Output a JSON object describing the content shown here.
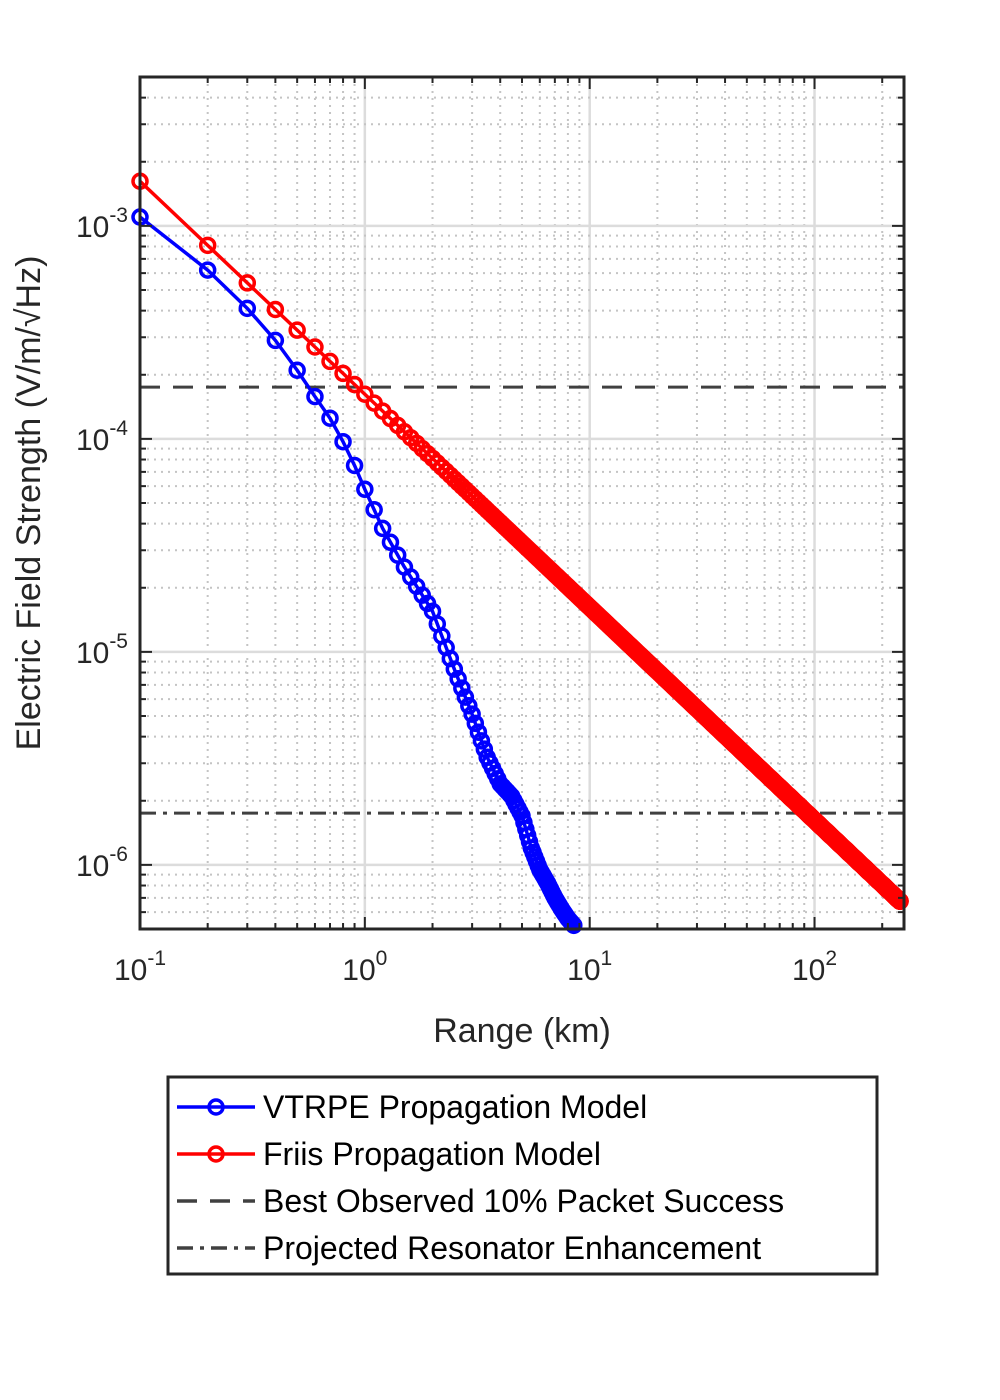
{
  "chart_data": {
    "type": "line",
    "xscale": "log",
    "yscale": "log",
    "xlim": [
      0.1,
      250
    ],
    "ylim": [
      5e-07,
      0.005
    ],
    "xlabel": "Range (km)",
    "ylabel": "Electric Field Strength (V/m/√Hz)",
    "x_ticks": [
      {
        "base": "10",
        "exp": "-1"
      },
      {
        "base": "10",
        "exp": "0"
      },
      {
        "base": "10",
        "exp": "1"
      },
      {
        "base": "10",
        "exp": "2"
      }
    ],
    "y_ticks": [
      {
        "base": "10",
        "exp": "-6"
      },
      {
        "base": "10",
        "exp": "-5"
      },
      {
        "base": "10",
        "exp": "-4"
      },
      {
        "base": "10",
        "exp": "-3"
      }
    ],
    "grid": true,
    "series": [
      {
        "name": "VTRPE Propagation Model",
        "color": "#0000ff",
        "marker": "circle",
        "line": "solid",
        "x": [
          0.1,
          0.2,
          0.3,
          0.4,
          0.5,
          0.6,
          0.7,
          0.8,
          0.9,
          1.0,
          1.2,
          1.5,
          2.0,
          2.5,
          3.0,
          3.5,
          4.0,
          4.5,
          5.0,
          5.5,
          6.0,
          6.5,
          7.0,
          7.5,
          8.0,
          8.5
        ],
        "y": [
          0.0011,
          0.00062,
          0.00041,
          0.00029,
          0.00021,
          0.000158,
          0.000125,
          9.7e-05,
          7.5e-05,
          5.8e-05,
          3.8e-05,
          2.5e-05,
          1.55e-05,
          8.3e-06,
          5.1e-06,
          3.2e-06,
          2.4e-06,
          2.1e-06,
          1.7e-06,
          1.2e-06,
          9.5e-07,
          8.2e-07,
          7e-07,
          6.2e-07,
          5.6e-07,
          5.2e-07
        ]
      },
      {
        "name": "Friis Propagation Model",
        "color": "#ff0000",
        "marker": "circle",
        "line": "solid",
        "x": [
          0.1,
          0.2,
          0.3,
          0.4,
          0.5,
          0.6,
          0.7,
          0.8,
          0.9,
          1.0,
          1.2,
          1.5,
          2.0,
          3.0,
          5.0,
          10.0,
          20.0,
          50.0,
          100.0,
          200.0,
          240.0
        ],
        "y": [
          0.00162,
          0.00081,
          0.00054,
          0.000405,
          0.000324,
          0.00027,
          0.000231,
          0.000203,
          0.00018,
          0.000162,
          0.000135,
          0.000108,
          8.1e-05,
          5.4e-05,
          3.24e-05,
          1.62e-05,
          8.1e-06,
          3.24e-06,
          1.62e-06,
          8.1e-07,
          6.75e-07
        ]
      }
    ],
    "reference_lines": [
      {
        "name": "Best Observed 10% Packet Success",
        "y": 0.000175,
        "style": "dashed",
        "color": "#404040"
      },
      {
        "name": "Projected Resonator Enhancement",
        "y": 1.75e-06,
        "style": "dashdot",
        "color": "#404040"
      }
    ],
    "legend_position": "below"
  }
}
